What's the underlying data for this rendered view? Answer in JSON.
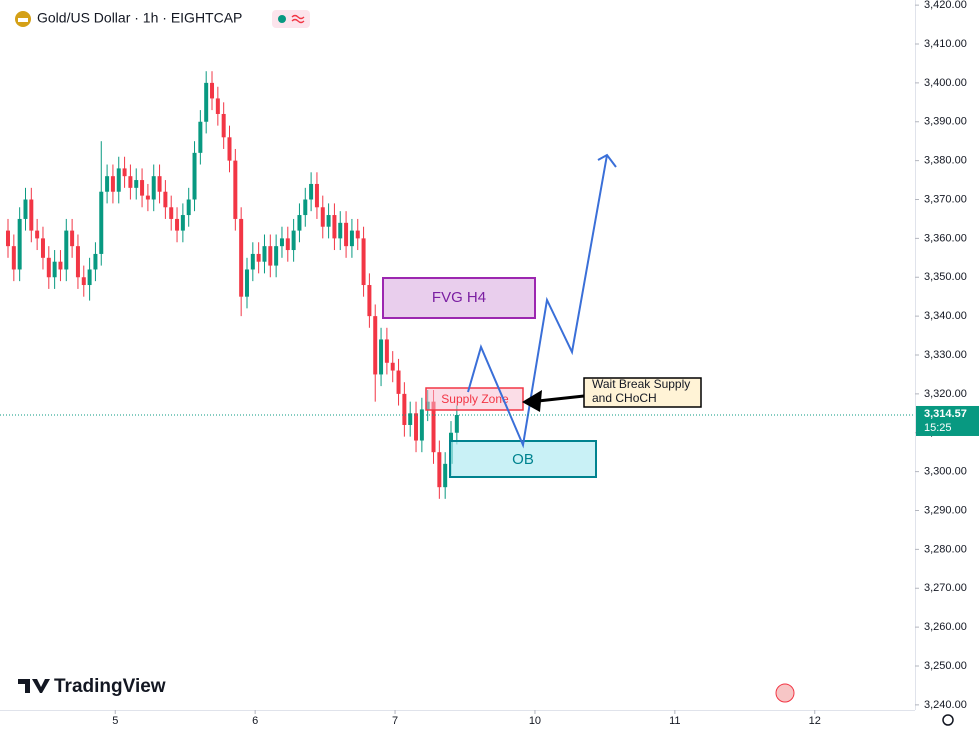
{
  "chart_data": {
    "type": "candlestick",
    "title": "Gold/US Dollar · 1h · EIGHTCAP",
    "watermark": "TradingView",
    "up_color": "#089981",
    "down_color": "#f23645",
    "open": [
      3362,
      3358,
      3352,
      3365,
      3370,
      3362,
      3360,
      3355,
      3350,
      3354,
      3352,
      3362,
      3358,
      3350,
      3348,
      3352,
      3356,
      3372,
      3376,
      3372,
      3378,
      3376,
      3373,
      3375,
      3371,
      3370,
      3376,
      3372,
      3368,
      3365,
      3362,
      3366,
      3370,
      3382,
      3390,
      3400,
      3396,
      3392,
      3386,
      3380,
      3365,
      3345,
      3352,
      3356,
      3354,
      3358,
      3353,
      3358,
      3360,
      3357,
      3362,
      3366,
      3370,
      3374,
      3368,
      3363,
      3366,
      3360,
      3364,
      3358,
      3362,
      3360,
      3348,
      3340,
      3325,
      3334,
      3328,
      3326,
      3320,
      3312,
      3315,
      3308,
      3316,
      3318,
      3305,
      3296,
      3302,
      3310
    ],
    "high": [
      3365,
      3361,
      3368,
      3373,
      3373,
      3365,
      3363,
      3358,
      3357,
      3357,
      3365,
      3365,
      3361,
      3353,
      3355,
      3359,
      3385,
      3379,
      3379,
      3381,
      3381,
      3379,
      3378,
      3378,
      3374,
      3379,
      3379,
      3375,
      3371,
      3368,
      3369,
      3373,
      3385,
      3393,
      3403,
      3403,
      3399,
      3395,
      3389,
      3383,
      3368,
      3355,
      3359,
      3359,
      3361,
      3361,
      3361,
      3363,
      3363,
      3365,
      3369,
      3373,
      3377,
      3377,
      3371,
      3369,
      3369,
      3367,
      3367,
      3365,
      3365,
      3363,
      3351,
      3343,
      3337,
      3337,
      3331,
      3329,
      3323,
      3318,
      3318,
      3319,
      3321,
      3321,
      3308,
      3305,
      3313,
      3317
    ],
    "low": [
      3355,
      3349,
      3349,
      3362,
      3359,
      3357,
      3352,
      3347,
      3347,
      3349,
      3349,
      3355,
      3347,
      3345,
      3344,
      3349,
      3353,
      3369,
      3369,
      3369,
      3373,
      3370,
      3370,
      3368,
      3367,
      3367,
      3369,
      3365,
      3362,
      3359,
      3359,
      3363,
      3367,
      3379,
      3387,
      3393,
      3389,
      3383,
      3377,
      3362,
      3340,
      3342,
      3349,
      3351,
      3351,
      3350,
      3350,
      3355,
      3354,
      3354,
      3359,
      3363,
      3367,
      3365,
      3360,
      3360,
      3357,
      3357,
      3355,
      3355,
      3357,
      3345,
      3337,
      3318,
      3322,
      3325,
      3323,
      3317,
      3309,
      3309,
      3305,
      3305,
      3313,
      3302,
      3293,
      3293,
      3299,
      3307
    ],
    "close": [
      3358,
      3352,
      3365,
      3370,
      3362,
      3360,
      3355,
      3350,
      3354,
      3352,
      3362,
      3358,
      3350,
      3348,
      3352,
      3356,
      3372,
      3376,
      3372,
      3378,
      3376,
      3373,
      3375,
      3371,
      3370,
      3376,
      3372,
      3368,
      3365,
      3362,
      3366,
      3370,
      3382,
      3390,
      3400,
      3396,
      3392,
      3386,
      3380,
      3365,
      3345,
      3352,
      3356,
      3354,
      3358,
      3353,
      3358,
      3360,
      3357,
      3362,
      3366,
      3370,
      3374,
      3368,
      3363,
      3366,
      3360,
      3364,
      3358,
      3362,
      3360,
      3348,
      3340,
      3325,
      3334,
      3328,
      3326,
      3320,
      3312,
      3315,
      3308,
      3316,
      3318,
      3305,
      3296,
      3302,
      3310,
      3314.57
    ],
    "last_price": {
      "value": 3314.57,
      "label": "3,314.57"
    },
    "countdown": "15:25",
    "ylim": [
      3238.68,
      3421.32
    ],
    "yticks": [
      {
        "value": 3240,
        "label": "3,240.00"
      },
      {
        "value": 3250,
        "label": "3,250.00"
      },
      {
        "value": 3260,
        "label": "3,260.00"
      },
      {
        "value": 3270,
        "label": "3,270.00"
      },
      {
        "value": 3280,
        "label": "3,280.00"
      },
      {
        "value": 3290,
        "label": "3,290.00"
      },
      {
        "value": 3300,
        "label": "3,300.00"
      },
      {
        "value": 3310,
        "label": "3,310.00"
      },
      {
        "value": 3320,
        "label": "3,320.00"
      },
      {
        "value": 3330,
        "label": "3,330.00"
      },
      {
        "value": 3340,
        "label": "3,340.00"
      },
      {
        "value": 3350,
        "label": "3,350.00"
      },
      {
        "value": 3360,
        "label": "3,360.00"
      },
      {
        "value": 3370,
        "label": "3,370.00"
      },
      {
        "value": 3380,
        "label": "3,380.00"
      },
      {
        "value": 3390,
        "label": "3,390.00"
      },
      {
        "value": 3400,
        "label": "3,400.00"
      },
      {
        "value": 3410,
        "label": "3,410.00"
      },
      {
        "value": 3420,
        "label": "3,420.00"
      }
    ],
    "xlim": [
      -1.372,
      155.6
    ],
    "xticks": [
      {
        "value": 18.4,
        "label": "5"
      },
      {
        "value": 42.4,
        "label": "6"
      },
      {
        "value": 66.4,
        "label": "7"
      },
      {
        "value": 90.4,
        "label": "10"
      },
      {
        "value": 114.4,
        "label": "11"
      },
      {
        "value": 138.4,
        "label": "12"
      }
    ],
    "annotations": {
      "fvg": "FVG H4",
      "supply": "Supply Zone",
      "ob": "OB",
      "note": [
        "Wait Break Supply",
        "and CHoCH"
      ]
    }
  }
}
